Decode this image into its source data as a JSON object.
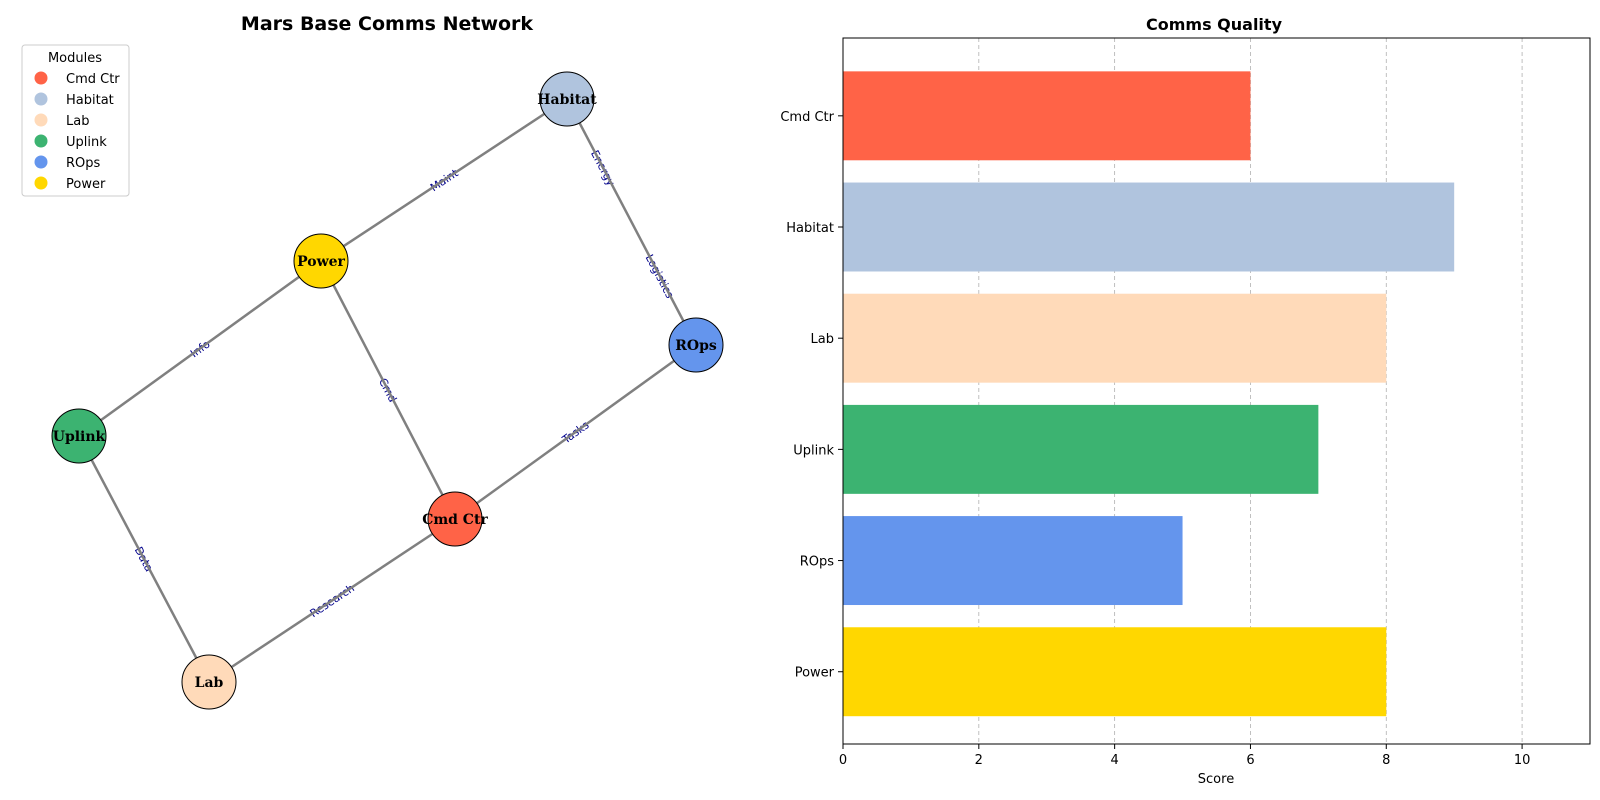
{
  "chart_data": [
    {
      "type": "network",
      "title": "Mars Base Comms Network",
      "legend": {
        "title": "Modules",
        "placement": "top-left",
        "entries": [
          {
            "label": "Cmd Ctr",
            "color": "#ff6347"
          },
          {
            "label": "Habitat",
            "color": "#b0c4de"
          },
          {
            "label": "Lab",
            "color": "#ffdab9"
          },
          {
            "label": "Uplink",
            "color": "#3cb371"
          },
          {
            "label": "ROps",
            "color": "#6495ed"
          },
          {
            "label": "Power",
            "color": "#ffd700"
          }
        ]
      },
      "nodes": [
        {
          "id": "cmd",
          "label": "Cmd Ctr",
          "color": "#ff6347"
        },
        {
          "id": "habitat",
          "label": "Habitat",
          "color": "#b0c4de"
        },
        {
          "id": "lab",
          "label": "Lab",
          "color": "#ffdab9"
        },
        {
          "id": "uplink",
          "label": "Uplink",
          "color": "#3cb371"
        },
        {
          "id": "rops",
          "label": "ROps",
          "color": "#6495ed"
        },
        {
          "id": "power",
          "label": "Power",
          "color": "#ffd700"
        }
      ],
      "edges": [
        {
          "source": "power",
          "target": "habitat",
          "label": "Maint"
        },
        {
          "source": "habitat",
          "target": "rops",
          "label": "Energy"
        },
        {
          "source": "habitat",
          "target": "rops",
          "label": "Logistics"
        },
        {
          "source": "power",
          "target": "uplink",
          "label": "Info"
        },
        {
          "source": "power",
          "target": "cmd",
          "label": "Cmd"
        },
        {
          "source": "cmd",
          "target": "rops",
          "label": "Tasks"
        },
        {
          "source": "uplink",
          "target": "lab",
          "label": "Data"
        },
        {
          "source": "lab",
          "target": "cmd",
          "label": "Research"
        }
      ]
    },
    {
      "type": "bar",
      "orientation": "horizontal",
      "title": "Comms Quality",
      "categories": [
        "Cmd Ctr",
        "Habitat",
        "Lab",
        "Uplink",
        "ROps",
        "Power"
      ],
      "values": [
        6,
        9,
        8,
        7,
        5,
        8
      ],
      "colors": [
        "#ff6347",
        "#b0c4de",
        "#ffdab9",
        "#3cb371",
        "#6495ed",
        "#ffd700"
      ],
      "xlabel": "Score",
      "ylabel": "",
      "xlim": [
        0,
        11
      ],
      "xticks": [
        0,
        2,
        4,
        6,
        8,
        10
      ],
      "grid": "x-dashed"
    }
  ]
}
